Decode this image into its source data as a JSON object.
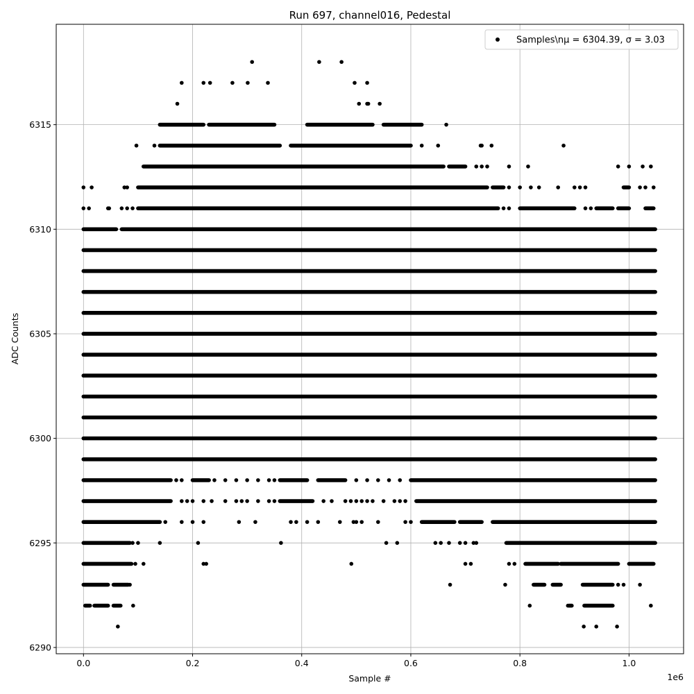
{
  "chart_data": {
    "type": "scatter",
    "title": "Run 697, channel016, Pedestal",
    "xlabel": "Sample #",
    "ylabel": "ADC Counts",
    "x_offset_label": "1e6",
    "xlim": [
      -0.05,
      1.1
    ],
    "ylim": [
      6289.7,
      6319.8
    ],
    "xticks": [
      0.0,
      0.2,
      0.4,
      0.6,
      0.8,
      1.0
    ],
    "xtick_labels": [
      "0.0",
      "0.2",
      "0.4",
      "0.6",
      "0.8",
      "1.0"
    ],
    "yticks": [
      6290,
      6295,
      6300,
      6305,
      6310,
      6315
    ],
    "ytick_labels": [
      "6290",
      "6295",
      "6300",
      "6305",
      "6310",
      "6315"
    ],
    "grid": true,
    "legend_position": "top-right",
    "marker_color": "#000000",
    "series": [
      {
        "name": "Samples\\n$\\mu$ = 6304.39, $\\sigma$ = 3.03",
        "legend_text": "Samples\\nμ = 6304.39, σ = 3.03",
        "x_range": [
          0.0,
          1.05
        ],
        "bands": [
          {
            "y": 6291,
            "x": [
              0.063,
              0.917,
              0.94,
              0.978
            ]
          },
          {
            "y": 6292,
            "segments": [
              [
                0.003,
                0.012
              ],
              [
                0.02,
                0.045
              ],
              [
                0.055,
                0.068
              ],
              [
                0.89,
                0.895
              ],
              [
                0.918,
                0.97
              ]
            ],
            "x": [
              0.091,
              0.818,
              0.888,
              1.04
            ]
          },
          {
            "y": 6293,
            "segments": [
              [
                0.0,
                0.045
              ],
              [
                0.055,
                0.082
              ],
              [
                0.825,
                0.845
              ],
              [
                0.86,
                0.875
              ],
              [
                0.915,
                0.97
              ]
            ],
            "x": [
              0.085,
              0.672,
              0.773,
              0.98,
              0.99,
              1.02
            ]
          },
          {
            "y": 6294,
            "segments": [
              [
                0.0,
                0.088
              ],
              [
                0.81,
                0.87
              ],
              [
                0.875,
                0.98
              ],
              [
                1.0,
                1.045
              ]
            ],
            "x": [
              0.095,
              0.11,
              0.22,
              0.225,
              0.491,
              0.7,
              0.71,
              0.78,
              0.79
            ]
          },
          {
            "y": 6295,
            "segments": [
              [
                0.0,
                0.085
              ],
              [
                0.775,
                1.048
              ]
            ],
            "x": [
              0.09,
              0.1,
              0.14,
              0.21,
              0.362,
              0.555,
              0.575,
              0.645,
              0.655,
              0.67,
              0.69,
              0.7,
              0.715,
              0.72
            ]
          },
          {
            "y": 6296,
            "segments": [
              [
                0.0,
                0.14
              ],
              [
                0.62,
                0.68
              ],
              [
                0.69,
                0.73
              ],
              [
                0.75,
                1.048
              ]
            ],
            "x": [
              0.15,
              0.18,
              0.2,
              0.22,
              0.285,
              0.315,
              0.38,
              0.39,
              0.41,
              0.43,
              0.47,
              0.495,
              0.5,
              0.51,
              0.54,
              0.59,
              0.6
            ]
          },
          {
            "y": 6297,
            "segments": [
              [
                0.0,
                0.16
              ],
              [
                0.36,
                0.42
              ],
              [
                0.61,
                1.048
              ]
            ],
            "x": [
              0.18,
              0.19,
              0.2,
              0.22,
              0.235,
              0.26,
              0.28,
              0.29,
              0.3,
              0.32,
              0.34,
              0.35,
              0.44,
              0.455,
              0.48,
              0.49,
              0.5,
              0.51,
              0.52,
              0.53,
              0.55,
              0.57,
              0.58,
              0.59
            ]
          },
          {
            "y": 6298,
            "segments": [
              [
                0.0,
                0.16
              ],
              [
                0.2,
                0.23
              ],
              [
                0.36,
                0.41
              ],
              [
                0.43,
                0.48
              ],
              [
                0.6,
                1.048
              ]
            ],
            "x": [
              0.17,
              0.18,
              0.24,
              0.26,
              0.28,
              0.3,
              0.32,
              0.34,
              0.35,
              0.5,
              0.52,
              0.54,
              0.56,
              0.58
            ]
          },
          {
            "y": 6299,
            "segments": [
              [
                0.0,
                1.048
              ]
            ]
          },
          {
            "y": 6300,
            "segments": [
              [
                0.0,
                1.048
              ]
            ]
          },
          {
            "y": 6301,
            "segments": [
              [
                0.0,
                1.048
              ]
            ]
          },
          {
            "y": 6302,
            "segments": [
              [
                0.0,
                1.048
              ]
            ]
          },
          {
            "y": 6303,
            "segments": [
              [
                0.0,
                1.048
              ]
            ]
          },
          {
            "y": 6304,
            "segments": [
              [
                0.0,
                1.048
              ]
            ]
          },
          {
            "y": 6305,
            "segments": [
              [
                0.0,
                1.048
              ]
            ]
          },
          {
            "y": 6306,
            "segments": [
              [
                0.0,
                1.048
              ]
            ]
          },
          {
            "y": 6307,
            "segments": [
              [
                0.0,
                1.048
              ]
            ]
          },
          {
            "y": 6308,
            "segments": [
              [
                0.0,
                1.048
              ]
            ]
          },
          {
            "y": 6309,
            "segments": [
              [
                0.0,
                1.048
              ]
            ]
          },
          {
            "y": 6310,
            "segments": [
              [
                0.0,
                0.06
              ],
              [
                0.07,
                1.048
              ]
            ]
          },
          {
            "y": 6311,
            "segments": [
              [
                0.1,
                0.76
              ],
              [
                0.8,
                0.9
              ],
              [
                0.94,
                0.97
              ],
              [
                0.98,
                1.0
              ],
              [
                1.03,
                1.045
              ]
            ],
            "x": [
              0.0,
              0.01,
              0.045,
              0.047,
              0.07,
              0.08,
              0.09,
              0.77,
              0.78,
              0.92,
              0.93
            ]
          },
          {
            "y": 6312,
            "segments": [
              [
                0.1,
                0.74
              ],
              [
                0.75,
                0.77
              ],
              [
                0.99,
                1.0
              ]
            ],
            "x": [
              0.0,
              0.015,
              0.075,
              0.08,
              0.78,
              0.8,
              0.82,
              0.835,
              0.87,
              0.9,
              0.91,
              0.92,
              1.02,
              1.03,
              1.045
            ]
          },
          {
            "y": 6313,
            "segments": [
              [
                0.11,
                0.66
              ],
              [
                0.67,
                0.7
              ]
            ],
            "x": [
              0.72,
              0.73,
              0.74,
              0.78,
              0.815,
              0.98,
              1.0,
              1.025,
              1.04
            ]
          },
          {
            "y": 6314,
            "segments": [
              [
                0.14,
                0.36
              ],
              [
                0.38,
                0.6
              ]
            ],
            "x": [
              0.097,
              0.13,
              0.62,
              0.65,
              0.728,
              0.73,
              0.748,
              0.88
            ]
          },
          {
            "y": 6315,
            "segments": [
              [
                0.14,
                0.22
              ],
              [
                0.23,
                0.35
              ],
              [
                0.41,
                0.53
              ],
              [
                0.55,
                0.62
              ]
            ],
            "x": [
              0.665
            ]
          },
          {
            "y": 6316,
            "x": [
              0.172,
              0.505,
              0.52,
              0.522,
              0.543
            ]
          },
          {
            "y": 6317,
            "x": [
              0.18,
              0.22,
              0.232,
              0.273,
              0.301,
              0.338,
              0.497,
              0.52
            ]
          },
          {
            "y": 6318,
            "x": [
              0.309,
              0.432,
              0.473
            ]
          }
        ]
      }
    ]
  }
}
